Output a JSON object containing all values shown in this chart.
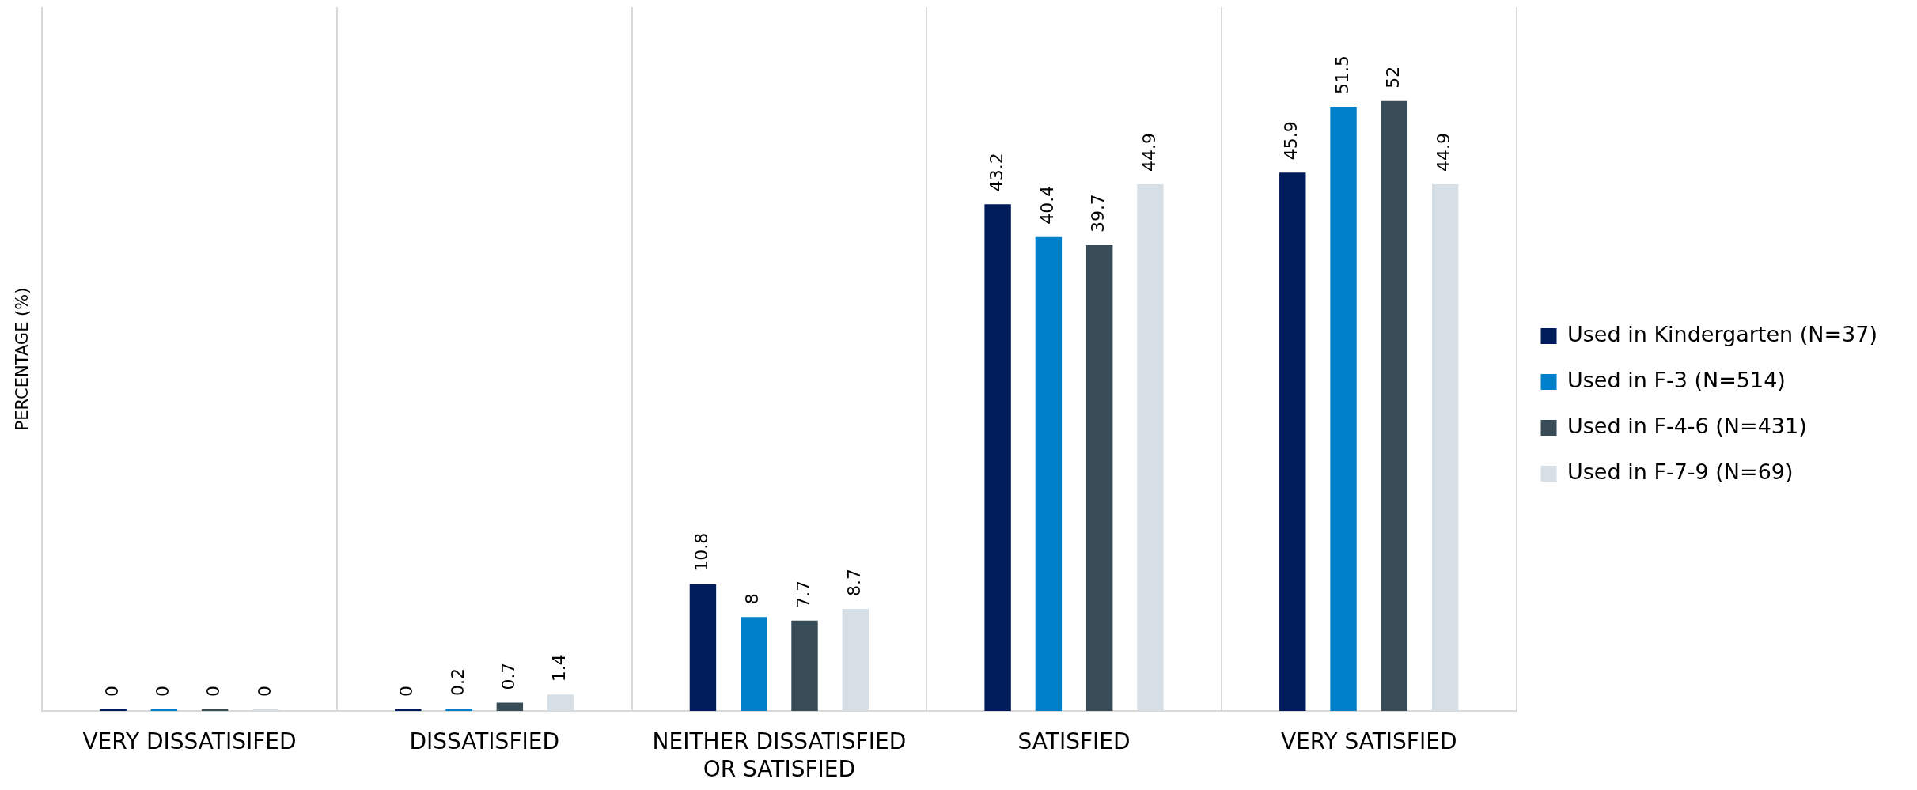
{
  "chart_data": {
    "type": "bar",
    "categories": [
      "VERY DISSATISIFED",
      "DISSATISFIED",
      "NEITHER DISSATISFIED OR SATISFIED",
      "SATISFIED",
      "VERY SATISFIED"
    ],
    "series": [
      {
        "name": "Used in Kindergarten (N=37)",
        "color": "#001c5a",
        "values": [
          0,
          0,
          10.8,
          43.2,
          45.9
        ]
      },
      {
        "name": "Used in F-3 (N=514)",
        "color": "#0080c8",
        "values": [
          0,
          0.2,
          8,
          40.4,
          51.5
        ]
      },
      {
        "name": "Used in F-4-6 (N=431)",
        "color": "#384c57",
        "values": [
          0,
          0.7,
          7.7,
          39.7,
          52
        ]
      },
      {
        "name": "Used in F-7-9 (N=69)",
        "color": "#d6dfe5",
        "values": [
          0,
          1.4,
          8.7,
          44.9,
          44.9
        ]
      }
    ],
    "ylabel": "PERCENTAGE (%)",
    "ylim": [
      0,
      60
    ],
    "tick_labels": "x",
    "grid": "x",
    "legend": "right",
    "data_labels": true
  }
}
